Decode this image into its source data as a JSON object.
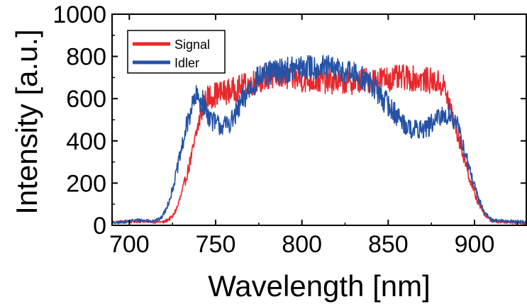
{
  "chart_data": {
    "type": "line",
    "title": "",
    "xlabel": "Wavelength [nm]",
    "ylabel": "Intensity [a.u.]",
    "xlim": [
      690,
      930
    ],
    "ylim": [
      0,
      1000
    ],
    "xticks": [
      700,
      750,
      800,
      850,
      900
    ],
    "yticks": [
      0,
      200,
      400,
      600,
      800,
      1000
    ],
    "grid": false,
    "legend_position": "top-left",
    "series": [
      {
        "name": "Signal",
        "color": "#e8282d",
        "noise": 55,
        "points": [
          [
            690,
            15
          ],
          [
            710,
            20
          ],
          [
            720,
            15
          ],
          [
            725,
            40
          ],
          [
            728,
            90
          ],
          [
            731,
            170
          ],
          [
            734,
            260
          ],
          [
            737,
            360
          ],
          [
            740,
            480
          ],
          [
            743,
            570
          ],
          [
            746,
            610
          ],
          [
            750,
            620
          ],
          [
            755,
            630
          ],
          [
            760,
            640
          ],
          [
            765,
            655
          ],
          [
            770,
            670
          ],
          [
            775,
            690
          ],
          [
            780,
            700
          ],
          [
            790,
            700
          ],
          [
            800,
            690
          ],
          [
            810,
            685
          ],
          [
            820,
            680
          ],
          [
            830,
            680
          ],
          [
            840,
            690
          ],
          [
            850,
            695
          ],
          [
            860,
            700
          ],
          [
            870,
            690
          ],
          [
            878,
            680
          ],
          [
            882,
            660
          ],
          [
            886,
            560
          ],
          [
            890,
            440
          ],
          [
            894,
            320
          ],
          [
            898,
            200
          ],
          [
            902,
            110
          ],
          [
            906,
            50
          ],
          [
            910,
            20
          ],
          [
            930,
            10
          ]
        ]
      },
      {
        "name": "Idler",
        "color": "#2453a6",
        "noise": 55,
        "points": [
          [
            690,
            10
          ],
          [
            705,
            25
          ],
          [
            712,
            20
          ],
          [
            718,
            30
          ],
          [
            721,
            70
          ],
          [
            724,
            140
          ],
          [
            727,
            240
          ],
          [
            730,
            350
          ],
          [
            733,
            460
          ],
          [
            736,
            560
          ],
          [
            739,
            605
          ],
          [
            742,
            590
          ],
          [
            746,
            520
          ],
          [
            750,
            480
          ],
          [
            755,
            470
          ],
          [
            760,
            500
          ],
          [
            765,
            580
          ],
          [
            770,
            650
          ],
          [
            775,
            700
          ],
          [
            785,
            730
          ],
          [
            795,
            740
          ],
          [
            805,
            750
          ],
          [
            815,
            745
          ],
          [
            825,
            730
          ],
          [
            835,
            700
          ],
          [
            842,
            650
          ],
          [
            848,
            590
          ],
          [
            855,
            520
          ],
          [
            862,
            460
          ],
          [
            868,
            450
          ],
          [
            874,
            470
          ],
          [
            880,
            510
          ],
          [
            886,
            530
          ],
          [
            890,
            470
          ],
          [
            894,
            360
          ],
          [
            898,
            240
          ],
          [
            902,
            130
          ],
          [
            906,
            60
          ],
          [
            910,
            25
          ],
          [
            930,
            15
          ]
        ]
      }
    ]
  }
}
